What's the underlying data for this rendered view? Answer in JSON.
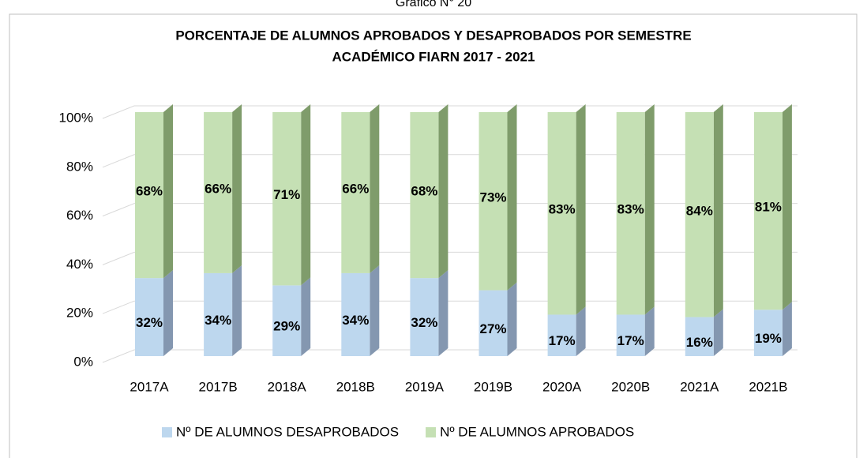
{
  "caption": "Gráfico N° 20",
  "chart_data": {
    "type": "stacked_bar",
    "title": [
      "PORCENTAJE DE ALUMNOS APROBADOS Y DESAPROBADOS POR SEMESTRE",
      "ACADÉMICO  FIARN 2017 - 2021"
    ],
    "categories": [
      "2017A",
      "2017B",
      "2018A",
      "2018B",
      "2019A",
      "2019B",
      "2020A",
      "2020B",
      "2021A",
      "2021B"
    ],
    "series": [
      {
        "name": "Nº DE ALUMNOS DESAPROBADOS",
        "color": "#bdd7ee",
        "side_color": "#8497b0",
        "values": [
          32,
          34,
          29,
          34,
          32,
          27,
          17,
          17,
          16,
          19
        ],
        "value_labels": [
          "32%",
          "34%",
          "29%",
          "34%",
          "32%",
          "27%",
          "17%",
          "17%",
          "16%",
          "19%"
        ]
      },
      {
        "name": "Nº DE ALUMNOS APROBADOS",
        "color": "#c5e0b4",
        "side_color": "#7f9c6b",
        "values": [
          68,
          66,
          71,
          66,
          68,
          73,
          83,
          83,
          84,
          81
        ],
        "value_labels": [
          "68%",
          "66%",
          "71%",
          "66%",
          "68%",
          "73%",
          "83%",
          "83%",
          "84%",
          "81%"
        ]
      }
    ],
    "ylim": [
      0,
      100
    ],
    "yticks": [
      {
        "value": 0,
        "label": "0%"
      },
      {
        "value": 20,
        "label": "20%"
      },
      {
        "value": 40,
        "label": "40%"
      },
      {
        "value": 60,
        "label": "60%"
      },
      {
        "value": 80,
        "label": "80%"
      },
      {
        "value": 100,
        "label": "100%"
      }
    ],
    "grid": true,
    "legend": "bottom"
  }
}
